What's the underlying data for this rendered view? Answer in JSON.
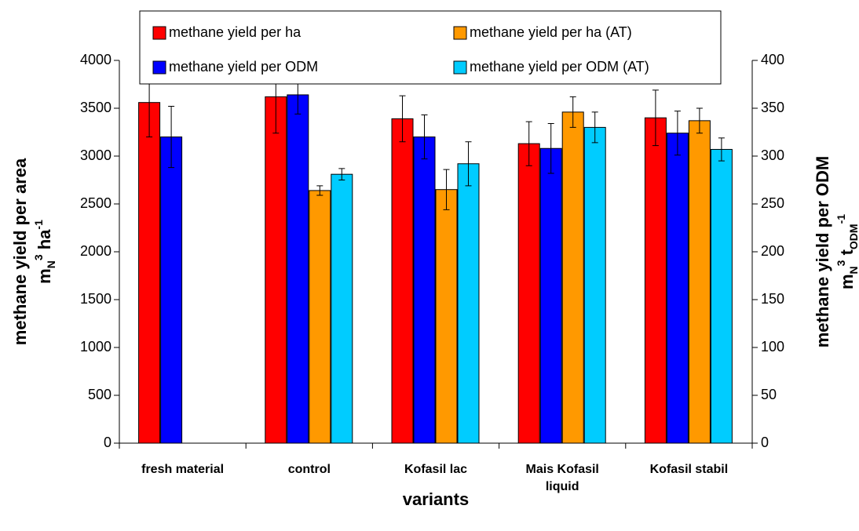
{
  "chart_data": {
    "type": "bar",
    "x_label": "variants",
    "y_label": "methane yield per area",
    "y_unit": [
      "m",
      "N",
      "3",
      " ha",
      "-1"
    ],
    "y2_label": "methane yield per ODM",
    "y2_unit": [
      "m",
      "N",
      "3",
      " t",
      "ODM",
      "-1"
    ],
    "categories": [
      [
        "fresh material"
      ],
      [
        "control"
      ],
      [
        "Kofasil lac"
      ],
      [
        "Mais Kofasil",
        "liquid"
      ],
      [
        "Kofasil stabil"
      ]
    ],
    "series": [
      {
        "name": "methane yield per ha",
        "color": "#ff0000",
        "axis": "y",
        "values": [
          3560,
          3620,
          3390,
          3130,
          3400
        ],
        "errors": [
          360,
          380,
          240,
          230,
          290
        ]
      },
      {
        "name": "methane yield per ODM",
        "color": "#0000ff",
        "axis": "y2",
        "values": [
          320,
          364,
          320,
          308,
          324
        ],
        "errors": [
          32,
          20,
          23,
          26,
          23
        ]
      },
      {
        "name": "methane yield per ha (AT)",
        "color": "#ff9900",
        "axis": "y",
        "values": [
          0,
          2640,
          2650,
          3460,
          3370
        ],
        "errors": [
          null,
          50,
          210,
          160,
          130
        ]
      },
      {
        "name": "methane yield per ODM (AT)",
        "color": "#00ccff",
        "axis": "y2",
        "values": [
          0,
          281,
          292,
          330,
          307
        ],
        "errors": [
          null,
          6,
          23,
          16,
          12
        ]
      }
    ],
    "ylim": [
      0,
      4000
    ],
    "yticks": [
      0,
      500,
      1000,
      1500,
      2000,
      2500,
      3000,
      3500,
      4000
    ],
    "y2lim": [
      0,
      400
    ],
    "y2ticks": [
      0,
      50,
      100,
      150,
      200,
      250,
      300,
      350,
      400
    ],
    "legend": "top"
  }
}
